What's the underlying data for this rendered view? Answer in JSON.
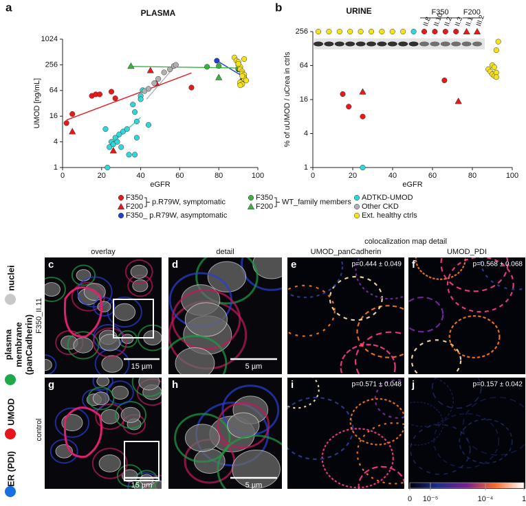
{
  "chart_data": [
    {
      "type": "scatter",
      "panel": "a",
      "title": "PLASMA",
      "x_label": "eGFR",
      "y_label": "UMOD [ng/mL]",
      "log_y": true,
      "xlim": [
        0,
        100
      ],
      "xticks": [
        0,
        20,
        40,
        60,
        80,
        100
      ],
      "ylim": [
        1,
        1024
      ],
      "yticks": [
        1,
        4,
        16,
        64,
        256,
        1024
      ],
      "series": [
        {
          "name": "F350",
          "color": "#e31a1c",
          "marker": "circle",
          "x": [
            2,
            5,
            15,
            17,
            19,
            25,
            27,
            66
          ],
          "values": [
            11,
            18,
            48,
            52,
            52,
            60,
            42,
            75
          ],
          "trend": {
            "x": [
              2,
              66
            ],
            "values": [
              13,
              165
            ]
          }
        },
        {
          "name": "F200",
          "color": "#e31a1c",
          "marker": "triangle",
          "x": [
            5,
            26,
            45,
            48
          ],
          "values": [
            7,
            2.5,
            190,
            95
          ]
        },
        {
          "name": "F350_ p.R79W, asymptomatic",
          "color": "#1f3fd0",
          "marker": "circle",
          "x": [
            79,
            90,
            91,
            92
          ],
          "values": [
            320,
            200,
            90,
            110
          ],
          "trend": {
            "x": [
              80,
              92
            ],
            "values": [
              300,
              140
            ]
          }
        },
        {
          "name": "F350",
          "color": "#3cb043",
          "marker": "circle",
          "x": [
            74,
            80,
            90
          ],
          "values": [
            230,
            240,
            210
          ],
          "trend": {
            "x": [
              35,
              90
            ],
            "values": [
              235,
              215
            ]
          }
        },
        {
          "name": "F200",
          "color": "#3cb043",
          "marker": "triangle",
          "x": [
            35,
            80
          ],
          "values": [
            240,
            130
          ]
        },
        {
          "name": "ADTKD-UMOD",
          "color": "#33d6d6",
          "marker": "circle",
          "x": [
            23,
            22,
            24,
            25,
            26,
            27,
            28,
            29,
            30,
            31,
            33,
            34,
            36,
            37,
            37,
            38,
            38,
            40,
            40,
            41,
            44
          ],
          "values": [
            1,
            8,
            3,
            4,
            3.5,
            5,
            4,
            6,
            3,
            7,
            8,
            2,
            30,
            20,
            2,
            12,
            5,
            48,
            40,
            65,
            10
          ],
          "trend": {
            "x": [
              23,
              40
            ],
            "values": [
              3,
              15
            ]
          }
        },
        {
          "name": "Other CKD",
          "color": "#b0b0b0",
          "marker": "circle",
          "x": [
            42,
            44,
            47,
            49,
            52,
            55,
            57,
            58
          ],
          "values": [
            62,
            70,
            95,
            120,
            170,
            200,
            240,
            255
          ],
          "trend": {
            "x": [
              43,
              58
            ],
            "values": [
              40,
              250
            ]
          }
        },
        {
          "name": "Ext. healthy ctrls",
          "color": "#f5e31a",
          "marker": "circle",
          "x": [
            88,
            89,
            90,
            90,
            91,
            91,
            92,
            92,
            93,
            93,
            93,
            94,
            91,
            92,
            90,
            93,
            92,
            91
          ],
          "values": [
            380,
            320,
            300,
            250,
            230,
            200,
            180,
            160,
            150,
            130,
            120,
            110,
            100,
            90,
            270,
            350,
            140,
            85
          ]
        }
      ],
      "legend_groups": [
        {
          "label": "p.R79W, symptomatic",
          "series": [
            0,
            1
          ]
        },
        {
          "label": "WT_family members",
          "series": [
            3,
            4
          ]
        }
      ]
    },
    {
      "type": "scatter",
      "panel": "b",
      "title": "URINE",
      "x_label": "eGFR",
      "y_label": "% of uUMOD / uCrea in ctrls",
      "log_y": true,
      "xlim": [
        0,
        100
      ],
      "xticks": [
        0,
        20,
        40,
        60,
        80,
        100
      ],
      "ylim": [
        1,
        256
      ],
      "yticks": [
        1,
        4,
        16,
        64,
        256
      ],
      "series": [
        {
          "color": "#e31a1c",
          "marker": "circle",
          "x": [
            15,
            18,
            25,
            66
          ],
          "values": [
            20,
            12,
            8,
            35
          ]
        },
        {
          "color": "#e31a1c",
          "marker": "triangle",
          "x": [
            25,
            73
          ],
          "values": [
            22,
            15
          ]
        },
        {
          "color": "#33d6d6",
          "marker": "circle",
          "x": [
            25
          ],
          "values": [
            1
          ]
        },
        {
          "color": "#f5e31a",
          "marker": "circle",
          "x": [
            88,
            89,
            90,
            90,
            91,
            91,
            92,
            92,
            93,
            92
          ],
          "values": [
            55,
            50,
            45,
            65,
            60,
            42,
            48,
            120,
            170,
            40
          ]
        }
      ],
      "blot": {
        "lanes": [
          {
            "color": "#f5e31a",
            "marker": "circle",
            "label": null
          },
          {
            "color": "#f5e31a",
            "marker": "circle",
            "label": null
          },
          {
            "color": "#f5e31a",
            "marker": "circle",
            "label": null
          },
          {
            "color": "#f5e31a",
            "marker": "circle",
            "label": null
          },
          {
            "color": "#f5e31a",
            "marker": "circle",
            "label": null
          },
          {
            "color": "#f5e31a",
            "marker": "circle",
            "label": null
          },
          {
            "color": "#f5e31a",
            "marker": "circle",
            "label": null
          },
          {
            "color": "#f5e31a",
            "marker": "circle",
            "label": null
          },
          {
            "color": "#f5e31a",
            "marker": "circle",
            "label": null
          },
          {
            "color": "#33d6d6",
            "marker": "circle",
            "label": null
          },
          {
            "color": "#e31a1c",
            "marker": "circle",
            "label": "II.8"
          },
          {
            "color": "#e31a1c",
            "marker": "circle",
            "label": "II.10"
          },
          {
            "color": "#e31a1c",
            "marker": "circle",
            "label": "II.2"
          },
          {
            "color": "#e31a1c",
            "marker": "circle",
            "label": "II.3"
          },
          {
            "color": "#e31a1c",
            "marker": "triangle",
            "label": "II.1"
          },
          {
            "color": "#e31a1c",
            "marker": "triangle",
            "label": "III.2"
          }
        ],
        "groups": [
          {
            "label": "F350",
            "lanes": [
              10,
              13
            ]
          },
          {
            "label": "F200",
            "lanes": [
              14,
              15
            ]
          }
        ]
      }
    }
  ],
  "microscopy": {
    "header": "colocalization map detail",
    "columns": [
      "overlay",
      "detail",
      "UMOD_panCadherin",
      "UMOD_PDI"
    ],
    "channels": [
      {
        "label": "nuclei",
        "color": "#c8c8c8"
      },
      {
        "label": "plasma membrane (panCadherin)",
        "color": "#1fa84a"
      },
      {
        "label": "UMOD",
        "color": "#e8141c"
      },
      {
        "label": "ER (PDI)",
        "color": "#1a6fe0"
      }
    ],
    "rows": [
      {
        "label": "F350_II.11",
        "panels": [
          "c",
          "d",
          "e",
          "f"
        ],
        "scale_bars": [
          "15 µm",
          "5 µm"
        ],
        "p_values": [
          "p=0.444 ± 0.049",
          "p=0.568 ± 0.068"
        ]
      },
      {
        "label": "control",
        "panels": [
          "g",
          "h",
          "i",
          "j"
        ],
        "scale_bars": [
          "15 µm",
          "5 µm"
        ],
        "p_values": [
          "p=0.571 ± 0.048",
          "p=0.157 ± 0.042"
        ]
      }
    ],
    "colorbar": [
      "0",
      "10⁻⁵",
      "10⁻⁴",
      "1"
    ]
  }
}
